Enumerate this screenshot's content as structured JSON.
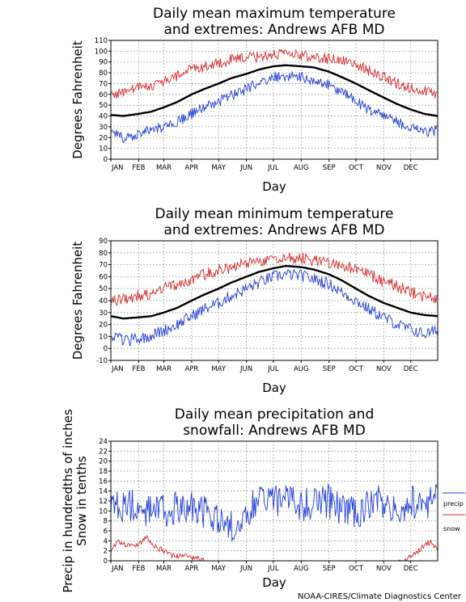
{
  "credit": "NOAA-CIRES/Climate Diagnostics Center",
  "legend": {
    "precip": {
      "label": "precip",
      "color": "#1f3fd6"
    },
    "snow": {
      "label": "snow",
      "color": "#d62a2a"
    }
  },
  "chart_data": [
    {
      "type": "line",
      "title": [
        "Daily mean maximum temperature",
        "and extremes: Andrews AFB MD"
      ],
      "xlabel": "Day",
      "ylabel": [
        "Degrees Fahrenheit"
      ],
      "ylim": [
        0,
        110
      ],
      "yticks": [
        0,
        10,
        20,
        30,
        40,
        50,
        60,
        70,
        80,
        90,
        100,
        110
      ],
      "xlim": [
        1,
        365
      ],
      "grid": true,
      "months": [
        {
          "label": "JAN",
          "day": 1
        },
        {
          "label": "FEB",
          "day": 32
        },
        {
          "label": "MAR",
          "day": 60
        },
        {
          "label": "APR",
          "day": 91
        },
        {
          "label": "MAY",
          "day": 121
        },
        {
          "label": "JUN",
          "day": 152
        },
        {
          "label": "JUL",
          "day": 182
        },
        {
          "label": "AUG",
          "day": 213
        },
        {
          "label": "SEP",
          "day": 244
        },
        {
          "label": "OCT",
          "day": 274
        },
        {
          "label": "NOV",
          "day": 305
        },
        {
          "label": "DEC",
          "day": 335
        }
      ],
      "series": [
        {
          "role": "high_extreme",
          "color": "#d62a2a",
          "points": [
            [
              1,
              60
            ],
            [
              15,
              62
            ],
            [
              30,
              66
            ],
            [
              45,
              68
            ],
            [
              60,
              72
            ],
            [
              75,
              77
            ],
            [
              91,
              84
            ],
            [
              105,
              86
            ],
            [
              121,
              89
            ],
            [
              135,
              92
            ],
            [
              152,
              94
            ],
            [
              166,
              95
            ],
            [
              182,
              97
            ],
            [
              196,
              97
            ],
            [
              213,
              96
            ],
            [
              227,
              95
            ],
            [
              244,
              93
            ],
            [
              258,
              92
            ],
            [
              274,
              88
            ],
            [
              288,
              82
            ],
            [
              305,
              76
            ],
            [
              320,
              70
            ],
            [
              335,
              66
            ],
            [
              350,
              63
            ],
            [
              365,
              60
            ]
          ],
          "jitter": 5
        },
        {
          "role": "mean",
          "color": "#000000",
          "points": [
            [
              1,
              41
            ],
            [
              15,
              40
            ],
            [
              32,
              42
            ],
            [
              46,
              44
            ],
            [
              60,
              48
            ],
            [
              75,
              53
            ],
            [
              91,
              60
            ],
            [
              105,
              65
            ],
            [
              121,
              70
            ],
            [
              135,
              75
            ],
            [
              152,
              79
            ],
            [
              166,
              83
            ],
            [
              182,
              86
            ],
            [
              196,
              87
            ],
            [
              213,
              86
            ],
            [
              227,
              85
            ],
            [
              244,
              81
            ],
            [
              258,
              76
            ],
            [
              274,
              70
            ],
            [
              288,
              64
            ],
            [
              305,
              57
            ],
            [
              320,
              51
            ],
            [
              335,
              46
            ],
            [
              350,
              42
            ],
            [
              365,
              40
            ]
          ],
          "jitter": 0
        },
        {
          "role": "low_extreme",
          "color": "#1f3fd6",
          "points": [
            [
              1,
              25
            ],
            [
              15,
              20
            ],
            [
              32,
              24
            ],
            [
              46,
              27
            ],
            [
              60,
              30
            ],
            [
              75,
              35
            ],
            [
              91,
              42
            ],
            [
              105,
              48
            ],
            [
              121,
              53
            ],
            [
              135,
              59
            ],
            [
              152,
              65
            ],
            [
              166,
              70
            ],
            [
              182,
              76
            ],
            [
              196,
              77
            ],
            [
              213,
              76
            ],
            [
              227,
              73
            ],
            [
              244,
              68
            ],
            [
              258,
              62
            ],
            [
              274,
              54
            ],
            [
              288,
              46
            ],
            [
              305,
              40
            ],
            [
              320,
              34
            ],
            [
              335,
              30
            ],
            [
              350,
              25
            ],
            [
              365,
              27
            ]
          ],
          "jitter": 5
        }
      ]
    },
    {
      "type": "line",
      "title": [
        "Daily mean minimum temperature",
        "and extremes: Andrews AFB MD"
      ],
      "xlabel": "Day",
      "ylabel": [
        "Degrees Fahrenheit"
      ],
      "ylim": [
        -10,
        90
      ],
      "yticks": [
        -10,
        0,
        10,
        20,
        30,
        40,
        50,
        60,
        70,
        80,
        90
      ],
      "xlim": [
        1,
        365
      ],
      "grid": true,
      "months": [
        {
          "label": "JAN",
          "day": 1
        },
        {
          "label": "FEB",
          "day": 32
        },
        {
          "label": "MAR",
          "day": 60
        },
        {
          "label": "APR",
          "day": 91
        },
        {
          "label": "MAY",
          "day": 121
        },
        {
          "label": "JUN",
          "day": 152
        },
        {
          "label": "JUL",
          "day": 182
        },
        {
          "label": "AUG",
          "day": 213
        },
        {
          "label": "SEP",
          "day": 244
        },
        {
          "label": "OCT",
          "day": 274
        },
        {
          "label": "NOV",
          "day": 305
        },
        {
          "label": "DEC",
          "day": 335
        }
      ],
      "series": [
        {
          "role": "high_extreme",
          "color": "#d62a2a",
          "points": [
            [
              1,
              40
            ],
            [
              15,
              42
            ],
            [
              32,
              44
            ],
            [
              46,
              46
            ],
            [
              60,
              50
            ],
            [
              75,
              53
            ],
            [
              91,
              58
            ],
            [
              105,
              62
            ],
            [
              121,
              65
            ],
            [
              135,
              68
            ],
            [
              152,
              72
            ],
            [
              166,
              73
            ],
            [
              182,
              75
            ],
            [
              196,
              76
            ],
            [
              213,
              75
            ],
            [
              227,
              74
            ],
            [
              244,
              72
            ],
            [
              258,
              70
            ],
            [
              274,
              66
            ],
            [
              288,
              62
            ],
            [
              305,
              56
            ],
            [
              320,
              52
            ],
            [
              335,
              47
            ],
            [
              350,
              44
            ],
            [
              365,
              40
            ]
          ],
          "jitter": 5
        },
        {
          "role": "mean",
          "color": "#000000",
          "points": [
            [
              1,
              27
            ],
            [
              15,
              25
            ],
            [
              32,
              26
            ],
            [
              46,
              27
            ],
            [
              60,
              30
            ],
            [
              75,
              34
            ],
            [
              91,
              40
            ],
            [
              105,
              45
            ],
            [
              121,
              50
            ],
            [
              135,
              55
            ],
            [
              152,
              60
            ],
            [
              166,
              64
            ],
            [
              182,
              67
            ],
            [
              196,
              69
            ],
            [
              213,
              68
            ],
            [
              227,
              66
            ],
            [
              244,
              62
            ],
            [
              258,
              57
            ],
            [
              274,
              50
            ],
            [
              288,
              44
            ],
            [
              305,
              38
            ],
            [
              320,
              34
            ],
            [
              335,
              30
            ],
            [
              350,
              28
            ],
            [
              365,
              27
            ]
          ],
          "jitter": 0
        },
        {
          "role": "low_extreme",
          "color": "#1f3fd6",
          "points": [
            [
              1,
              12
            ],
            [
              15,
              6
            ],
            [
              32,
              8
            ],
            [
              46,
              11
            ],
            [
              60,
              15
            ],
            [
              75,
              20
            ],
            [
              91,
              27
            ],
            [
              105,
              33
            ],
            [
              121,
              38
            ],
            [
              135,
              44
            ],
            [
              152,
              50
            ],
            [
              166,
              55
            ],
            [
              182,
              60
            ],
            [
              196,
              62
            ],
            [
              213,
              61
            ],
            [
              227,
              58
            ],
            [
              244,
              54
            ],
            [
              258,
              47
            ],
            [
              274,
              40
            ],
            [
              288,
              33
            ],
            [
              305,
              26
            ],
            [
              320,
              20
            ],
            [
              335,
              16
            ],
            [
              350,
              12
            ],
            [
              365,
              15
            ]
          ],
          "jitter": 5
        }
      ]
    },
    {
      "type": "line",
      "title": [
        "Daily mean precipitation and",
        "snowfall: Andrews AFB MD"
      ],
      "xlabel": "Day",
      "ylabel": [
        "Precip in hundredths of inches",
        "Snow in tenths"
      ],
      "ylim": [
        0,
        24
      ],
      "yticks": [
        0,
        2,
        4,
        6,
        8,
        10,
        12,
        14,
        16,
        18,
        20,
        22,
        24
      ],
      "xlim": [
        1,
        365
      ],
      "grid": true,
      "months": [
        {
          "label": "JAN",
          "day": 1
        },
        {
          "label": "FEB",
          "day": 32
        },
        {
          "label": "MAR",
          "day": 60
        },
        {
          "label": "APR",
          "day": 91
        },
        {
          "label": "MAY",
          "day": 121
        },
        {
          "label": "JUN",
          "day": 152
        },
        {
          "label": "JUL",
          "day": 182
        },
        {
          "label": "AUG",
          "day": 213
        },
        {
          "label": "SEP",
          "day": 244
        },
        {
          "label": "OCT",
          "day": 274
        },
        {
          "label": "NOV",
          "day": 305
        },
        {
          "label": "DEC",
          "day": 335
        }
      ],
      "series": [
        {
          "name": "precip",
          "role": "precip",
          "color": "#1f3fd6",
          "points": [
            [
              1,
              10
            ],
            [
              20,
              11
            ],
            [
              40,
              10
            ],
            [
              60,
              10
            ],
            [
              80,
              11
            ],
            [
              100,
              10
            ],
            [
              120,
              8
            ],
            [
              140,
              7
            ],
            [
              152,
              10
            ],
            [
              165,
              12
            ],
            [
              182,
              12
            ],
            [
              200,
              12
            ],
            [
              213,
              11
            ],
            [
              230,
              12
            ],
            [
              244,
              12
            ],
            [
              260,
              10
            ],
            [
              274,
              10
            ],
            [
              290,
              11
            ],
            [
              305,
              12
            ],
            [
              320,
              11
            ],
            [
              335,
              12
            ],
            [
              350,
              12
            ],
            [
              365,
              12
            ]
          ],
          "jitter": 3.5
        },
        {
          "name": "snow",
          "role": "snow",
          "color": "#d62a2a",
          "points": [
            [
              1,
              2
            ],
            [
              10,
              4
            ],
            [
              20,
              3
            ],
            [
              32,
              3
            ],
            [
              40,
              5
            ],
            [
              48,
              3
            ],
            [
              60,
              2
            ],
            [
              70,
              1
            ],
            [
              85,
              1
            ],
            [
              95,
              0.5
            ],
            [
              105,
              0
            ],
            [
              320,
              0
            ],
            [
              330,
              0.2
            ],
            [
              340,
              1.5
            ],
            [
              350,
              3
            ],
            [
              358,
              4
            ],
            [
              365,
              2
            ]
          ],
          "jitter": 0.6
        }
      ]
    }
  ]
}
